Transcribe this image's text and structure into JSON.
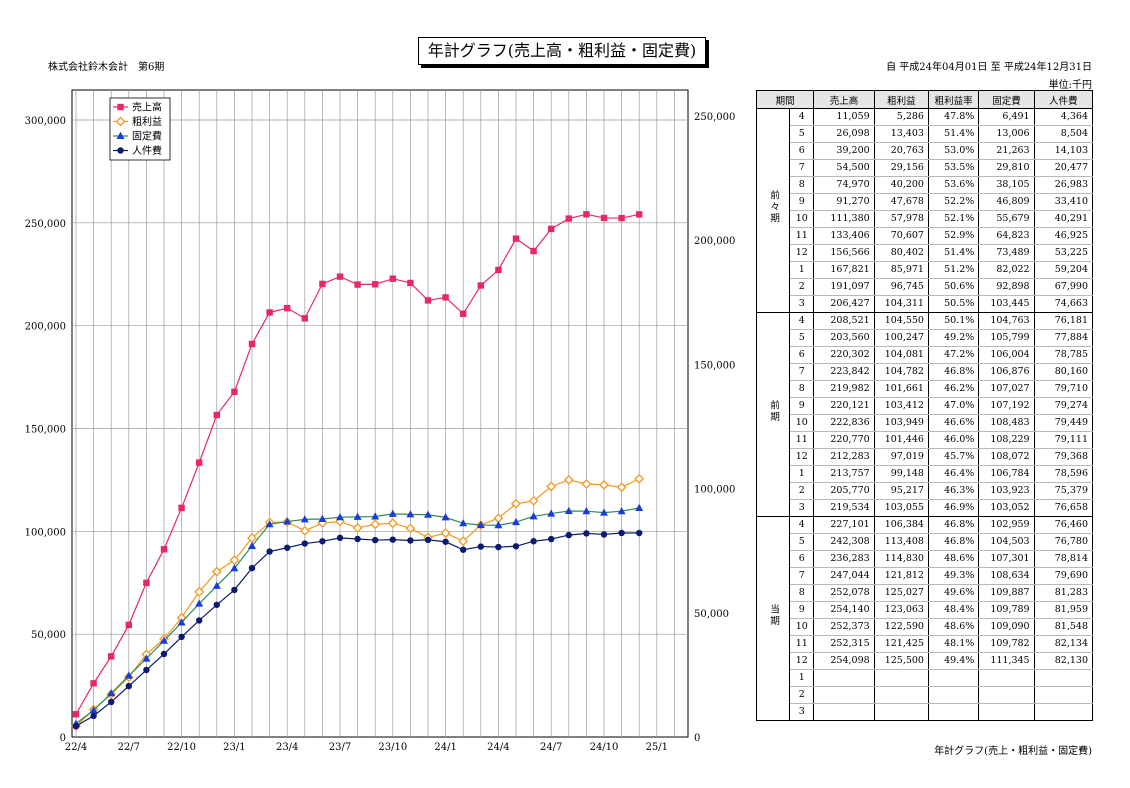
{
  "title": "年計グラフ(売上高・粗利益・固定費)",
  "company": "株式会社鈴木会計　第6期",
  "period": "自 平成24年04月01日 至 平成24年12月31日",
  "unit": "単位:千円",
  "footer": "年計グラフ(売上・粗利益・固定費)",
  "chart_data": {
    "type": "line",
    "x": [
      "22/4",
      "22/5",
      "22/6",
      "22/7",
      "22/8",
      "22/9",
      "22/10",
      "22/11",
      "22/12",
      "23/1",
      "23/2",
      "23/3",
      "23/4",
      "23/5",
      "23/6",
      "23/7",
      "23/8",
      "23/9",
      "23/10",
      "23/11",
      "23/12",
      "24/1",
      "24/2",
      "24/3",
      "24/4",
      "24/5",
      "24/6",
      "24/7",
      "24/8",
      "24/9",
      "24/10",
      "24/11",
      "24/12"
    ],
    "x_tick_labels": [
      "22/4",
      "22/7",
      "22/10",
      "23/1",
      "23/4",
      "23/7",
      "23/10",
      "24/1",
      "24/4",
      "24/7",
      "24/10",
      "25/1"
    ],
    "ylim_left": [
      0,
      300000
    ],
    "yticks_left": [
      "0",
      "50,000",
      "100,000",
      "150,000",
      "200,000",
      "250,000",
      "300,000"
    ],
    "ylim_right": [
      0,
      250000
    ],
    "yticks_right": [
      "0",
      "50,000",
      "100,000",
      "150,000",
      "200,000",
      "250,000"
    ],
    "grid": true,
    "legend": "top-left",
    "series": [
      {
        "name": "売上高",
        "color": "#e8266a",
        "marker": "square",
        "axis": "left",
        "values": [
          11059,
          26098,
          39200,
          54500,
          74970,
          91270,
          111380,
          133406,
          156566,
          167821,
          191097,
          206427,
          208521,
          203560,
          220302,
          223842,
          219982,
          220121,
          222836,
          220770,
          212283,
          213757,
          205770,
          219534,
          227101,
          242308,
          236283,
          247044,
          252078,
          254140,
          252373,
          252315,
          254098
        ]
      },
      {
        "name": "粗利益",
        "color": "#f5961e",
        "marker": "diamond",
        "axis": "left",
        "values": [
          5286,
          13403,
          20763,
          29156,
          40200,
          47678,
          57978,
          70607,
          80402,
          85971,
          96745,
          104311,
          104550,
          100247,
          104081,
          104782,
          101661,
          103412,
          103949,
          101446,
          97019,
          99148,
          95217,
          103055,
          106384,
          113408,
          114830,
          121812,
          125027,
          123063,
          122590,
          121425,
          125500
        ]
      },
      {
        "name": "固定費",
        "color": "#1a3cd8",
        "marker": "triangle",
        "axis": "left",
        "values": [
          6491,
          13006,
          21263,
          29810,
          38105,
          46809,
          55679,
          64823,
          73489,
          82022,
          92898,
          103445,
          104763,
          105799,
          106004,
          106876,
          107027,
          107192,
          108483,
          108229,
          108072,
          106784,
          103923,
          103052,
          102959,
          104503,
          107301,
          108634,
          109887,
          109789,
          109090,
          109782,
          111345
        ]
      },
      {
        "name": "人件費",
        "color": "#0a1a6e",
        "marker": "circle",
        "axis": "right",
        "values": [
          4364,
          8504,
          14103,
          20477,
          26983,
          33410,
          40291,
          46925,
          53225,
          59204,
          67990,
          74663,
          76181,
          77884,
          78785,
          80160,
          79710,
          79274,
          79449,
          79111,
          79368,
          78596,
          75379,
          76658,
          76460,
          76780,
          78814,
          79690,
          81283,
          81959,
          81548,
          82134,
          82130
        ]
      }
    ]
  },
  "table": {
    "headers": [
      "期間",
      "売上高",
      "粗利益",
      "粗利益率",
      "固定費",
      "人件費"
    ],
    "groups": [
      {
        "label": "前々期",
        "rows": [
          [
            "4",
            "11,059",
            "5,286",
            "47.8%",
            "6,491",
            "4,364"
          ],
          [
            "5",
            "26,098",
            "13,403",
            "51.4%",
            "13,006",
            "8,504"
          ],
          [
            "6",
            "39,200",
            "20,763",
            "53.0%",
            "21,263",
            "14,103"
          ],
          [
            "7",
            "54,500",
            "29,156",
            "53.5%",
            "29,810",
            "20,477"
          ],
          [
            "8",
            "74,970",
            "40,200",
            "53.6%",
            "38,105",
            "26,983"
          ],
          [
            "9",
            "91,270",
            "47,678",
            "52.2%",
            "46,809",
            "33,410"
          ],
          [
            "10",
            "111,380",
            "57,978",
            "52.1%",
            "55,679",
            "40,291"
          ],
          [
            "11",
            "133,406",
            "70,607",
            "52.9%",
            "64,823",
            "46,925"
          ],
          [
            "12",
            "156,566",
            "80,402",
            "51.4%",
            "73,489",
            "53,225"
          ],
          [
            "1",
            "167,821",
            "85,971",
            "51.2%",
            "82,022",
            "59,204"
          ],
          [
            "2",
            "191,097",
            "96,745",
            "50.6%",
            "92,898",
            "67,990"
          ],
          [
            "3",
            "206,427",
            "104,311",
            "50.5%",
            "103,445",
            "74,663"
          ]
        ]
      },
      {
        "label": "前期",
        "rows": [
          [
            "4",
            "208,521",
            "104,550",
            "50.1%",
            "104,763",
            "76,181"
          ],
          [
            "5",
            "203,560",
            "100,247",
            "49.2%",
            "105,799",
            "77,884"
          ],
          [
            "6",
            "220,302",
            "104,081",
            "47.2%",
            "106,004",
            "78,785"
          ],
          [
            "7",
            "223,842",
            "104,782",
            "46.8%",
            "106,876",
            "80,160"
          ],
          [
            "8",
            "219,982",
            "101,661",
            "46.2%",
            "107,027",
            "79,710"
          ],
          [
            "9",
            "220,121",
            "103,412",
            "47.0%",
            "107,192",
            "79,274"
          ],
          [
            "10",
            "222,836",
            "103,949",
            "46.6%",
            "108,483",
            "79,449"
          ],
          [
            "11",
            "220,770",
            "101,446",
            "46.0%",
            "108,229",
            "79,111"
          ],
          [
            "12",
            "212,283",
            "97,019",
            "45.7%",
            "108,072",
            "79,368"
          ],
          [
            "1",
            "213,757",
            "99,148",
            "46.4%",
            "106,784",
            "78,596"
          ],
          [
            "2",
            "205,770",
            "95,217",
            "46.3%",
            "103,923",
            "75,379"
          ],
          [
            "3",
            "219,534",
            "103,055",
            "46.9%",
            "103,052",
            "76,658"
          ]
        ]
      },
      {
        "label": "当期",
        "rows": [
          [
            "4",
            "227,101",
            "106,384",
            "46.8%",
            "102,959",
            "76,460"
          ],
          [
            "5",
            "242,308",
            "113,408",
            "46.8%",
            "104,503",
            "76,780"
          ],
          [
            "6",
            "236,283",
            "114,830",
            "48.6%",
            "107,301",
            "78,814"
          ],
          [
            "7",
            "247,044",
            "121,812",
            "49.3%",
            "108,634",
            "79,690"
          ],
          [
            "8",
            "252,078",
            "125,027",
            "49.6%",
            "109,887",
            "81,283"
          ],
          [
            "9",
            "254,140",
            "123,063",
            "48.4%",
            "109,789",
            "81,959"
          ],
          [
            "10",
            "252,373",
            "122,590",
            "48.6%",
            "109,090",
            "81,548"
          ],
          [
            "11",
            "252,315",
            "121,425",
            "48.1%",
            "109,782",
            "82,134"
          ],
          [
            "12",
            "254,098",
            "125,500",
            "49.4%",
            "111,345",
            "82,130"
          ],
          [
            "1",
            "",
            "",
            "",
            "",
            ""
          ],
          [
            "2",
            "",
            "",
            "",
            "",
            ""
          ],
          [
            "3",
            "",
            "",
            "",
            "",
            ""
          ]
        ]
      }
    ]
  }
}
